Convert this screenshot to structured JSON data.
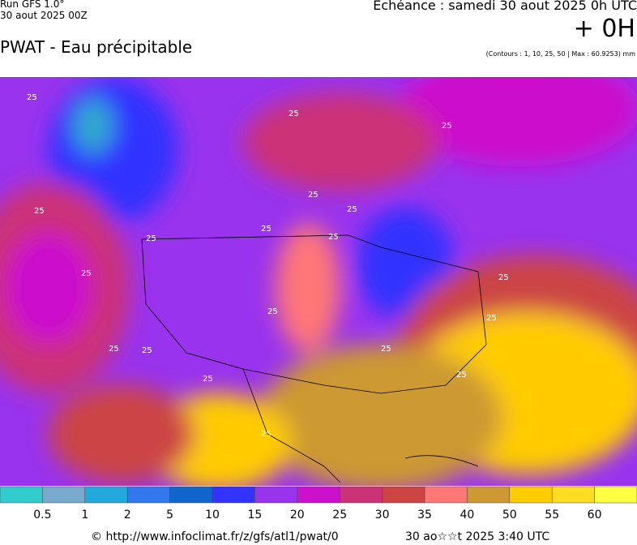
{
  "header": {
    "run": "Run GFS 1.0°",
    "date": "30 aout 2025 00Z",
    "title": "PWAT - Eau précipitable",
    "echeance": "Echéance : samedi 30 aout 2025 0h UTC",
    "offset": "+ 0H",
    "contours": "(Contours : 1, 10, 25, 50 | Max : 60.9253) mm"
  },
  "map": {
    "contour_labels": [
      "25",
      "25",
      "25",
      "25",
      "25",
      "25",
      "25",
      "25",
      "25",
      "25",
      "25",
      "25",
      "25",
      "25",
      "25",
      "25",
      "25",
      "25",
      "25"
    ]
  },
  "legend": {
    "colors": [
      "#33cccc",
      "#77aacc",
      "#22aadd",
      "#3377ee",
      "#1166cc",
      "#3333ff",
      "#9933ee",
      "#cc11cc",
      "#cc3377",
      "#cc4444",
      "#ff7777",
      "#cc9933",
      "#ffcc00",
      "#ffdd22",
      "#ffff44"
    ],
    "labels": [
      "0.5",
      "1",
      "2",
      "5",
      "10",
      "15",
      "20",
      "25",
      "30",
      "35",
      "40",
      "50",
      "55",
      "60"
    ]
  },
  "footer": {
    "url": "© http://www.infoclimat.fr/z/gfs/atl1/pwat/0",
    "time": "30 ao☆☆t 2025  3:40 UTC"
  }
}
